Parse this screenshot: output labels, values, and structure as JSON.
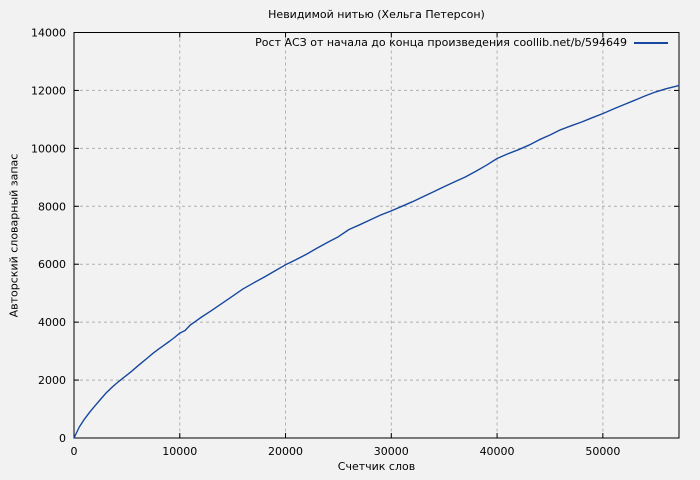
{
  "window": {
    "background": "#f2f2f2"
  },
  "chart_data": {
    "type": "line",
    "title": "Невидимой нитью (Хельга Петерсон)",
    "xlabel": "Счетчик слов",
    "ylabel": "Авторский словарный запас",
    "xlim": [
      0,
      57200
    ],
    "ylim": [
      0,
      14000
    ],
    "xticks": [
      0,
      10000,
      20000,
      30000,
      40000,
      50000
    ],
    "yticks": [
      0,
      2000,
      4000,
      6000,
      8000,
      10000,
      12000,
      14000
    ],
    "grid": true,
    "legend_position": "top-right-inside",
    "colors": {
      "series": "#17479e",
      "grid": "#b0b0b0",
      "border": "#000000",
      "background": "#f2f2f2"
    },
    "series": [
      {
        "name": "Рост АСЗ от начала до конца произведения coollib.net/b/594649",
        "color": "#17479e",
        "points": [
          [
            0,
            0
          ],
          [
            500,
            380
          ],
          [
            1000,
            660
          ],
          [
            1500,
            900
          ],
          [
            2000,
            1120
          ],
          [
            2500,
            1330
          ],
          [
            3000,
            1540
          ],
          [
            3500,
            1720
          ],
          [
            4000,
            1880
          ],
          [
            4500,
            2030
          ],
          [
            5000,
            2170
          ],
          [
            5500,
            2320
          ],
          [
            6000,
            2480
          ],
          [
            6500,
            2630
          ],
          [
            7000,
            2780
          ],
          [
            7500,
            2930
          ],
          [
            8000,
            3070
          ],
          [
            8500,
            3200
          ],
          [
            9000,
            3330
          ],
          [
            9500,
            3470
          ],
          [
            10000,
            3620
          ],
          [
            10500,
            3710
          ],
          [
            11000,
            3900
          ],
          [
            11500,
            4030
          ],
          [
            12000,
            4160
          ],
          [
            13000,
            4400
          ],
          [
            14000,
            4650
          ],
          [
            15000,
            4900
          ],
          [
            16000,
            5150
          ],
          [
            17000,
            5360
          ],
          [
            18000,
            5560
          ],
          [
            19000,
            5770
          ],
          [
            20000,
            5980
          ],
          [
            21000,
            6160
          ],
          [
            22000,
            6350
          ],
          [
            23000,
            6560
          ],
          [
            24000,
            6760
          ],
          [
            25000,
            6950
          ],
          [
            26000,
            7200
          ],
          [
            27000,
            7360
          ],
          [
            28000,
            7530
          ],
          [
            29000,
            7700
          ],
          [
            30000,
            7840
          ],
          [
            31000,
            8000
          ],
          [
            32000,
            8160
          ],
          [
            33000,
            8330
          ],
          [
            34000,
            8500
          ],
          [
            35000,
            8680
          ],
          [
            36000,
            8850
          ],
          [
            37000,
            9010
          ],
          [
            38000,
            9210
          ],
          [
            39000,
            9420
          ],
          [
            40000,
            9650
          ],
          [
            41000,
            9810
          ],
          [
            42000,
            9950
          ],
          [
            43000,
            10110
          ],
          [
            44000,
            10300
          ],
          [
            45000,
            10460
          ],
          [
            46000,
            10640
          ],
          [
            47000,
            10780
          ],
          [
            48000,
            10910
          ],
          [
            49000,
            11060
          ],
          [
            50000,
            11200
          ],
          [
            51000,
            11360
          ],
          [
            52000,
            11510
          ],
          [
            53000,
            11660
          ],
          [
            54000,
            11810
          ],
          [
            55000,
            11950
          ],
          [
            56000,
            12060
          ],
          [
            57000,
            12150
          ],
          [
            57200,
            12180
          ]
        ]
      }
    ]
  }
}
